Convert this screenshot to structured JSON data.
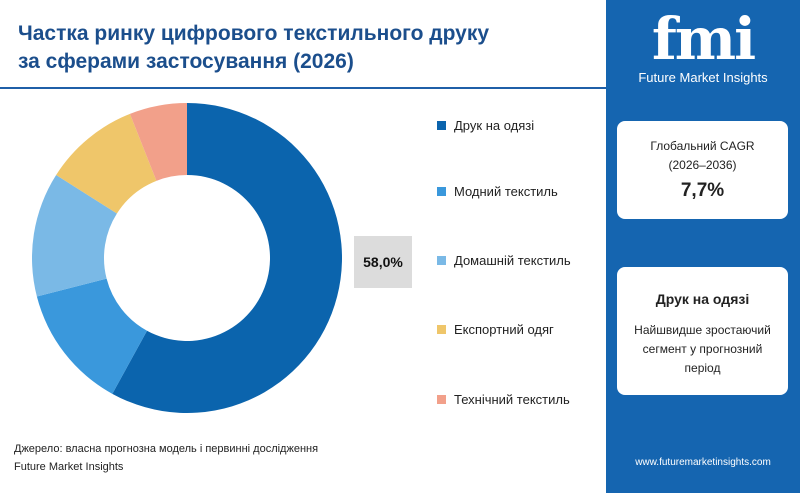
{
  "title": {
    "line1": "Частка ринку цифрового текстильного друку",
    "line2": "за сферами застосування (2026)"
  },
  "chart_data": {
    "type": "pie",
    "title": "Частка ринку цифрового текстильного друку за сферами застосування (2026)",
    "categories": [
      "Друк на одязі",
      "Модний текстиль",
      "Домашній текстиль",
      "Експортний одяг",
      "Технічний текстиль"
    ],
    "values": [
      58,
      13,
      13,
      10,
      6
    ],
    "unit": "%",
    "colors": [
      "#0b64ad",
      "#3a98dc",
      "#7ab9e6",
      "#efc66a",
      "#f2a08a"
    ],
    "data_labels": {
      "0": "58,0%"
    },
    "legend_placement": "right"
  },
  "source": {
    "line1": "Джерело: власна прогнозна модель і первинні дослідження",
    "line2": "Future Market Insights"
  },
  "sidebar": {
    "logo_text": "fmi",
    "logo_sub": "Future Market Insights",
    "cagr_label1": "Глобальний CAGR",
    "cagr_label2": "(2026–2036)",
    "cagr_value": "7,7%",
    "segment_title": "Друк на одязі",
    "segment_desc1": "Найшвидше зростаючий",
    "segment_desc2": "сегмент у прогнозний",
    "segment_desc3": "період",
    "url": "www.futuremarketinsights.com"
  }
}
